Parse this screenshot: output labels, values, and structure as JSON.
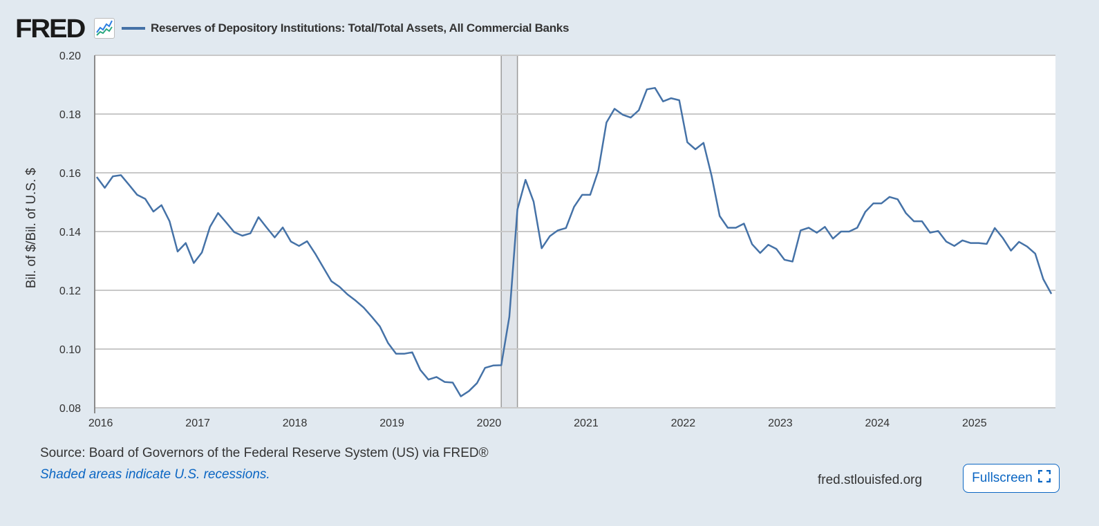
{
  "header": {
    "logo": "FRED",
    "logo_icon": "line-chart-icon"
  },
  "chart_data": {
    "type": "line",
    "title": "Reserves of Depository Institutions: Total/Total Assets, All Commercial Banks",
    "ylabel": "Bil. of $/Bil. of U.S. $",
    "xlabel": "",
    "ylim": [
      0.08,
      0.2
    ],
    "yticks": [
      "0.08",
      "0.10",
      "0.12",
      "0.14",
      "0.16",
      "0.18",
      "0.20"
    ],
    "xticks": [
      "2016",
      "2017",
      "2018",
      "2019",
      "2020",
      "2021",
      "2022",
      "2023",
      "2024",
      "2025"
    ],
    "xlim": [
      "2015-11",
      "2025-11"
    ],
    "x_start": "2015-12",
    "frequency": "monthly",
    "grid": true,
    "line_color": "#4572a7",
    "recessions": [
      {
        "start": "2020-02",
        "end": "2020-04"
      }
    ],
    "series": [
      {
        "name": "Reserves of Depository Institutions: Total/Total Assets, All Commercial Banks",
        "values": [
          0.1586,
          0.1549,
          0.1588,
          0.1592,
          0.1559,
          0.1525,
          0.1511,
          0.1468,
          0.149,
          0.1435,
          0.1332,
          0.1361,
          0.1293,
          0.1329,
          0.1416,
          0.1463,
          0.1431,
          0.1398,
          0.1386,
          0.1394,
          0.1449,
          0.1414,
          0.138,
          0.1414,
          0.1366,
          0.1351,
          0.1367,
          0.1325,
          0.1278,
          0.1231,
          0.1212,
          0.1186,
          0.1165,
          0.1141,
          0.111,
          0.1077,
          0.1021,
          0.0984,
          0.0984,
          0.0989,
          0.0929,
          0.0896,
          0.0905,
          0.0888,
          0.0886,
          0.0839,
          0.0857,
          0.0884,
          0.0936,
          0.0944,
          0.0945,
          0.111,
          0.1475,
          0.1576,
          0.1502,
          0.1343,
          0.1384,
          0.1404,
          0.1412,
          0.1484,
          0.1525,
          0.1525,
          0.1608,
          0.1771,
          0.1818,
          0.1798,
          0.1788,
          0.1813,
          0.1884,
          0.1889,
          0.1843,
          0.1854,
          0.1847,
          0.1704,
          0.168,
          0.1702,
          0.159,
          0.1453,
          0.1413,
          0.1413,
          0.1427,
          0.1357,
          0.1327,
          0.1355,
          0.1341,
          0.1304,
          0.1298,
          0.1404,
          0.1413,
          0.1396,
          0.1416,
          0.1376,
          0.14,
          0.14,
          0.1413,
          0.1467,
          0.1496,
          0.1496,
          0.1518,
          0.151,
          0.1463,
          0.1435,
          0.1435,
          0.1396,
          0.1402,
          0.1366,
          0.1351,
          0.137,
          0.1361,
          0.1361,
          0.1358,
          0.1412,
          0.1378,
          0.1335,
          0.1365,
          0.1349,
          0.1325,
          0.1238,
          0.1188
        ]
      }
    ]
  },
  "footer": {
    "source": "Source: Board of Governors of the Federal Reserve System (US) via FRED®",
    "note": "Shaded areas indicate U.S. recessions.",
    "site": "fred.stlouisfed.org",
    "fullscreen_label": "Fullscreen",
    "fullscreen_icon": "expand-icon"
  }
}
